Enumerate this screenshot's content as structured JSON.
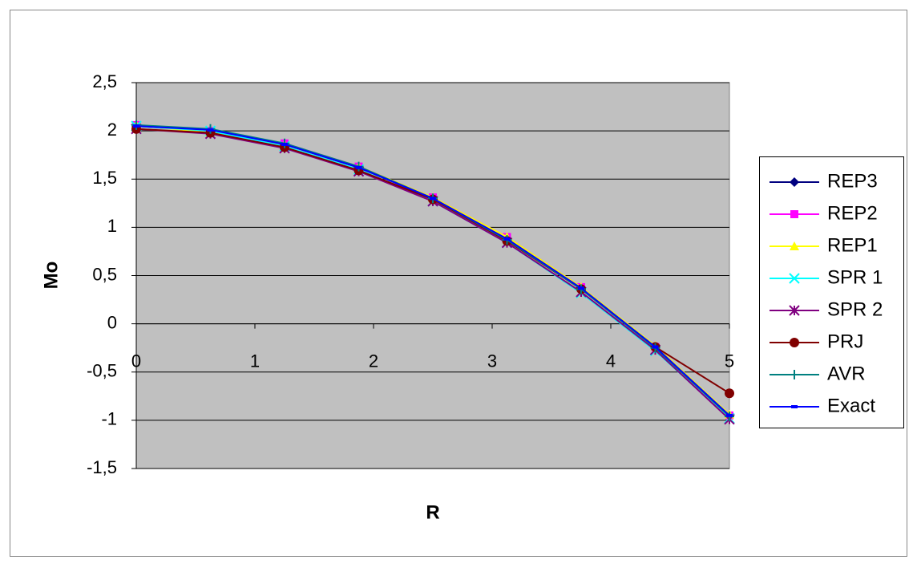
{
  "chart_data": {
    "type": "line",
    "x_label": "R",
    "y_label": "Mo",
    "x": [
      0,
      0.625,
      1.25,
      1.875,
      2.5,
      3.125,
      3.75,
      4.375,
      5
    ],
    "xlim": [
      0,
      5
    ],
    "xticks": [
      0,
      1,
      2,
      3,
      4,
      5
    ],
    "ylim": [
      -1.5,
      2.5
    ],
    "yticks": [
      {
        "value": -1.5,
        "label": "-1,5"
      },
      -1,
      {
        "value": -0.5,
        "label": "-0,5"
      },
      0,
      {
        "value": 0.5,
        "label": "0,5"
      },
      1,
      {
        "value": 1.5,
        "label": "1,5"
      },
      2,
      {
        "value": 2.5,
        "label": "2,5"
      }
    ],
    "grid": true,
    "legend": "right",
    "series": [
      {
        "name": "REP3",
        "color": "#000080",
        "marker": "diamond",
        "values": [
          2.05,
          2.0,
          1.86,
          1.62,
          1.3,
          0.88,
          0.37,
          -0.24,
          -0.95
        ]
      },
      {
        "name": "REP2",
        "color": "#ff00ff",
        "marker": "square",
        "values": [
          2.06,
          2.0,
          1.87,
          1.63,
          1.31,
          0.9,
          0.38,
          -0.24,
          -0.95
        ]
      },
      {
        "name": "REP1",
        "color": "#ffff00",
        "marker": "triangle",
        "values": [
          2.06,
          1.98,
          1.86,
          1.63,
          1.31,
          0.9,
          0.38,
          -0.23,
          -0.94
        ]
      },
      {
        "name": "SPR 1",
        "color": "#00ffff",
        "marker": "x",
        "values": [
          2.05,
          2.0,
          1.84,
          1.6,
          1.27,
          0.84,
          0.32,
          -0.28,
          -0.98
        ]
      },
      {
        "name": "SPR 2",
        "color": "#800080",
        "marker": "star",
        "values": [
          2.02,
          1.97,
          1.82,
          1.58,
          1.27,
          0.84,
          0.33,
          -0.27,
          -0.99
        ]
      },
      {
        "name": "PRJ",
        "color": "#800000",
        "marker": "circle",
        "values": [
          2.02,
          1.98,
          1.83,
          1.59,
          1.29,
          0.86,
          0.36,
          -0.24,
          -0.72
        ]
      },
      {
        "name": "AVR",
        "color": "#008080",
        "marker": "plus",
        "values": [
          2.06,
          2.02,
          1.87,
          1.63,
          1.3,
          0.87,
          0.36,
          -0.25,
          -0.96
        ]
      },
      {
        "name": "Exact",
        "color": "#0000ff",
        "marker": "dash",
        "values": [
          2.05,
          2.01,
          1.86,
          1.62,
          1.3,
          0.88,
          0.37,
          -0.24,
          -0.95
        ]
      }
    ]
  }
}
